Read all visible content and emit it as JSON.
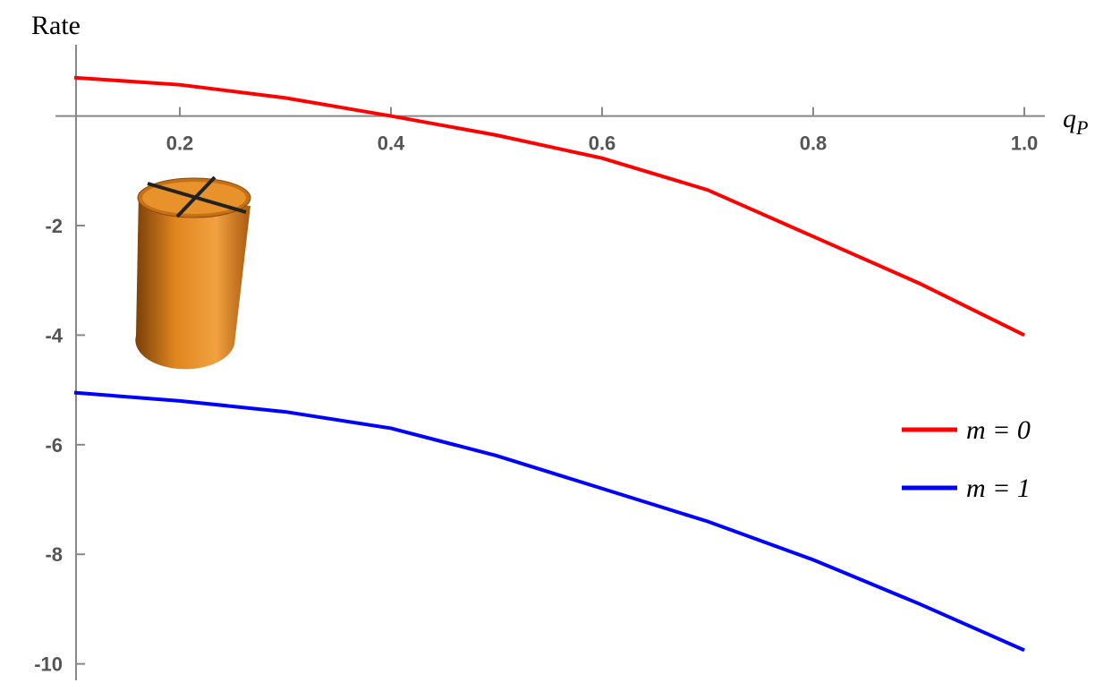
{
  "chart_data": {
    "type": "line",
    "title": "Rate",
    "x_label": "qP",
    "x": [
      0.1,
      0.2,
      0.3,
      0.4,
      0.5,
      0.6,
      0.7,
      0.8,
      0.9,
      1.0
    ],
    "series": [
      {
        "name": "m = 0",
        "color": "#ff0000",
        "values": [
          0.7,
          0.57,
          0.33,
          0,
          -0.35,
          -0.77,
          -1.35,
          -2.2,
          -3.05,
          -4.0
        ]
      },
      {
        "name": "m = 1",
        "color": "#0000ff",
        "values": [
          -5.05,
          -5.2,
          -5.4,
          -5.7,
          -6.2,
          -6.8,
          -7.4,
          -8.1,
          -8.9,
          -9.75
        ]
      }
    ],
    "xlim": [
      0.1,
      1.0
    ],
    "ylim": [
      -10.3,
      1.3
    ],
    "xticks": [
      0.2,
      0.4,
      0.6,
      0.8,
      {
        "value": 1.0,
        "label": "1.0"
      }
    ],
    "yticks": [
      -2,
      -4,
      -6,
      -8,
      -10
    ],
    "legend": "right"
  }
}
